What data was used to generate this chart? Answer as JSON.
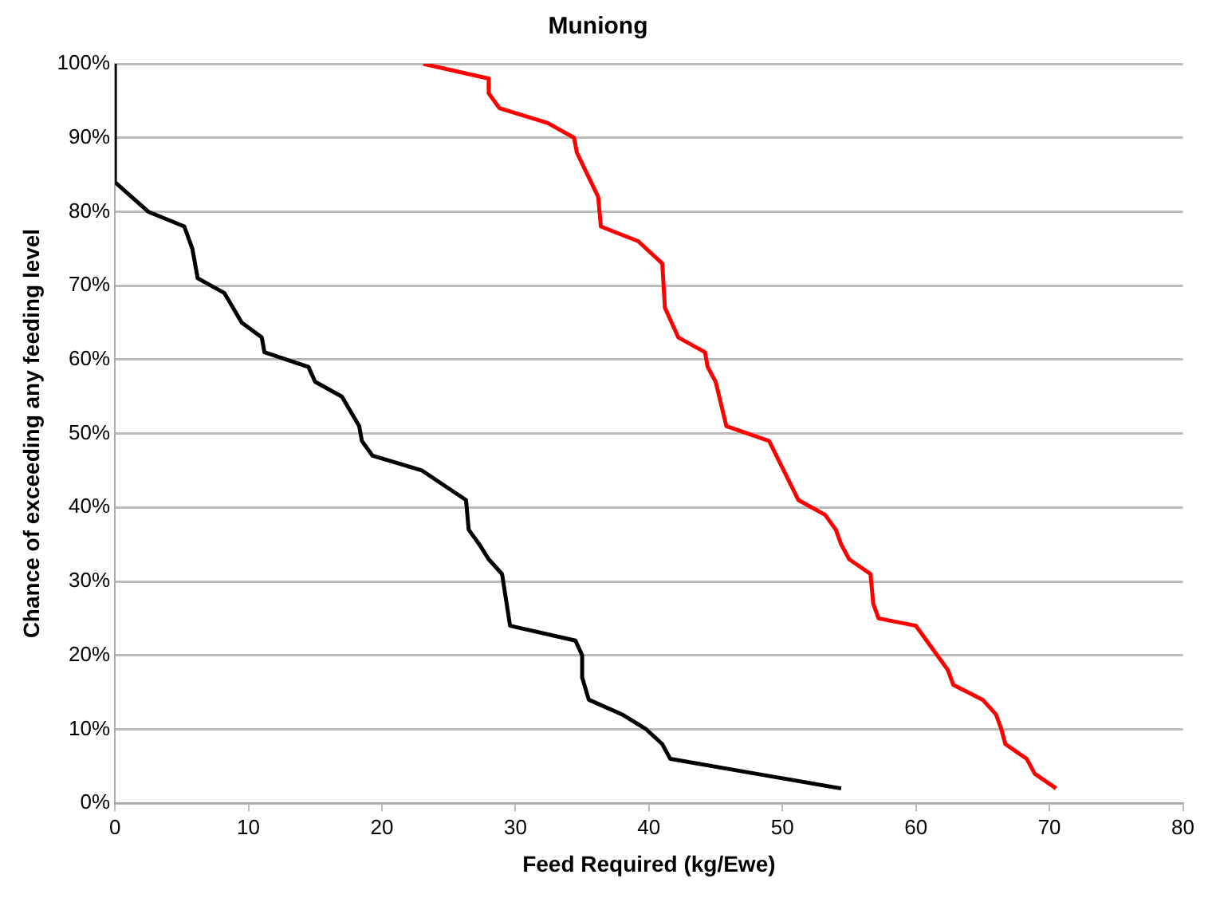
{
  "chart_data": {
    "type": "line",
    "title": "Muniong",
    "xlabel": "Feed Required (kg/Ewe)",
    "ylabel": "Chance of exceeding any feeding level",
    "xlim": [
      0,
      80
    ],
    "xticks": [
      0,
      10,
      20,
      30,
      40,
      50,
      60,
      70,
      80
    ],
    "ylim": [
      0,
      100
    ],
    "yticks": [
      {
        "value": 0,
        "label": "0%"
      },
      {
        "value": 10,
        "label": "10%"
      },
      {
        "value": 20,
        "label": "20%"
      },
      {
        "value": 30,
        "label": "30%"
      },
      {
        "value": 40,
        "label": "40%"
      },
      {
        "value": 50,
        "label": "50%"
      },
      {
        "value": 60,
        "label": "60%"
      },
      {
        "value": 70,
        "label": "70%"
      },
      {
        "value": 80,
        "label": "80%"
      },
      {
        "value": 90,
        "label": "90%"
      },
      {
        "value": 100,
        "label": "100%"
      }
    ],
    "grid": "y",
    "legend": false,
    "marker": "none",
    "line_style": "solid",
    "series": [
      {
        "color": "#000000",
        "x": [
          0,
          0,
          2.5,
          5.2,
          5.8,
          6.2,
          8.2,
          9.5,
          11,
          11.2,
          14.5,
          15,
          17,
          18.3,
          18.5,
          19.3,
          23,
          26.3,
          26.5,
          27.3,
          28,
          29,
          29.6,
          34.5,
          35,
          35,
          35.5,
          38,
          39.8,
          41,
          41.6,
          48,
          54.4
        ],
        "values": [
          100,
          84,
          80,
          78,
          75,
          71,
          69,
          65,
          63,
          61,
          59,
          57,
          55,
          51,
          49,
          47,
          45,
          41,
          37,
          35,
          33,
          31,
          24,
          22,
          20,
          17,
          14,
          12,
          10,
          8,
          6,
          4,
          2
        ]
      },
      {
        "color": "#ff0000",
        "x": [
          23.1,
          28,
          28,
          28.8,
          32.4,
          34.4,
          34.6,
          35.4,
          36.2,
          36.4,
          39.2,
          41,
          41.2,
          42.2,
          44.2,
          44.4,
          45,
          45.8,
          49,
          51.2,
          53.2,
          54,
          54.4,
          55,
          56.6,
          56.8,
          57.2,
          60,
          61.2,
          62.4,
          62.8,
          65,
          66,
          66.4,
          66.7,
          68.3,
          68.9,
          70.5
        ],
        "values": [
          100,
          98,
          96,
          94,
          92,
          90,
          88,
          85,
          82,
          78,
          76,
          73,
          67,
          63,
          61,
          59,
          57,
          51,
          49,
          41,
          39,
          37,
          35,
          33,
          31,
          27,
          25,
          24,
          21,
          18,
          16,
          14,
          12,
          10,
          8,
          6,
          4,
          2
        ]
      }
    ]
  }
}
